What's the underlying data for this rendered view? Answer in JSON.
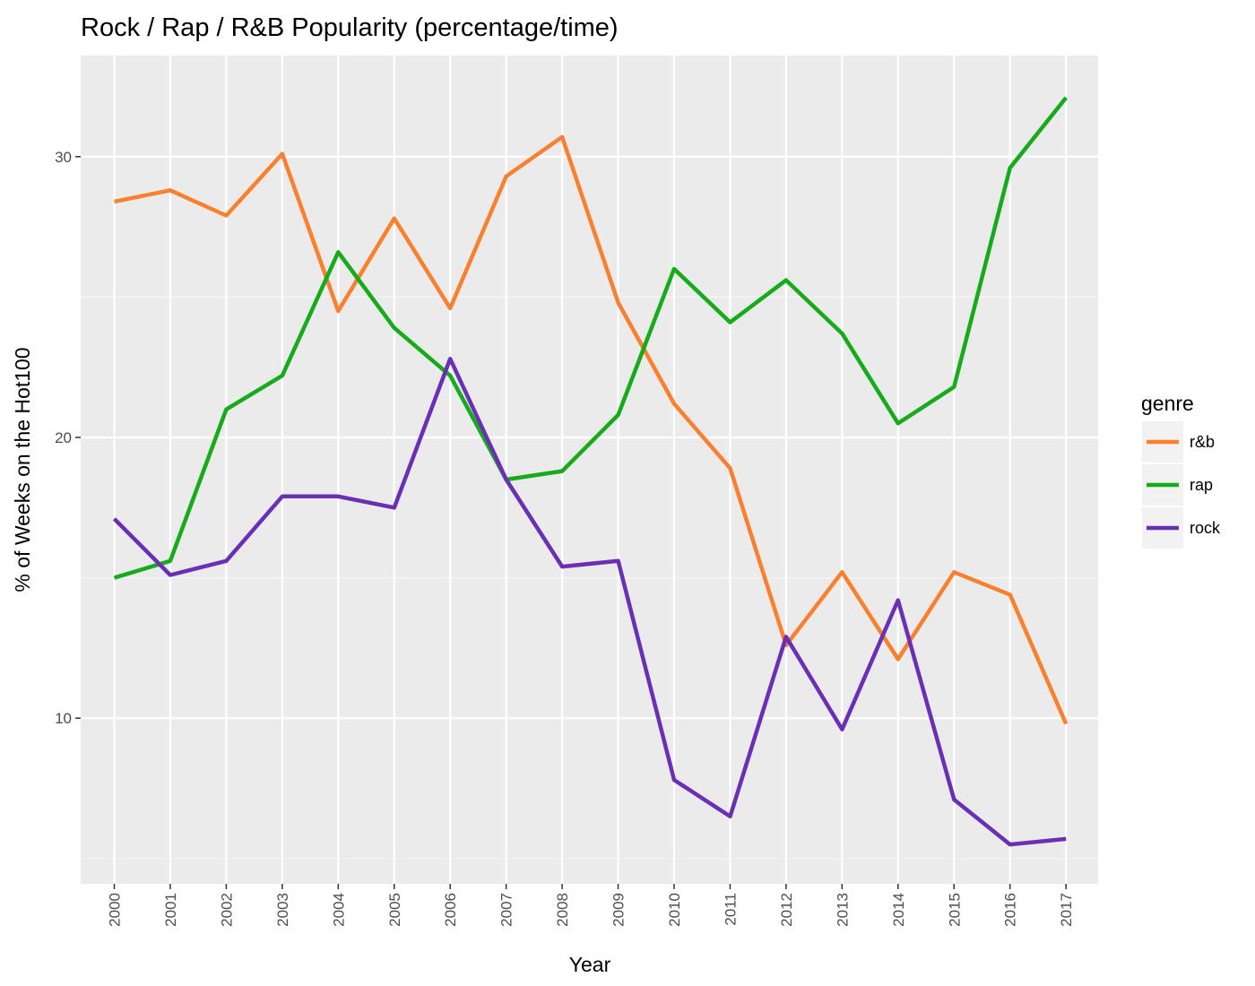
{
  "chart_data": {
    "type": "line",
    "title": "Rock / Rap / R&B Popularity   (percentage/time)",
    "xlabel": "Year",
    "ylabel": "%  of Weeks on the Hot100",
    "categories": [
      "2000",
      "2001",
      "2002",
      "2003",
      "2004",
      "2005",
      "2006",
      "2007",
      "2008",
      "2009",
      "2010",
      "2011",
      "2012",
      "2013",
      "2014",
      "2015",
      "2016",
      "2017"
    ],
    "yticks": [
      10,
      20,
      30
    ],
    "ylim": [
      4.1,
      33.6
    ],
    "grid": true,
    "legend": {
      "title": "genre",
      "position": "right"
    },
    "series": [
      {
        "name": "r&b",
        "color": "#f8802e",
        "values": [
          28.4,
          28.8,
          27.9,
          30.1,
          24.5,
          27.8,
          24.6,
          29.3,
          30.7,
          24.8,
          21.2,
          18.9,
          12.6,
          15.2,
          12.1,
          15.2,
          14.4,
          9.8
        ]
      },
      {
        "name": "rap",
        "color": "#16ab1a",
        "values": [
          15.0,
          15.6,
          21.0,
          22.2,
          26.6,
          23.9,
          22.2,
          18.5,
          18.8,
          20.8,
          26.0,
          24.1,
          25.6,
          23.7,
          20.5,
          21.8,
          29.6,
          32.1
        ]
      },
      {
        "name": "rock",
        "color": "#6a2fb5",
        "values": [
          17.1,
          15.1,
          15.6,
          17.9,
          17.9,
          17.5,
          22.8,
          18.5,
          15.4,
          15.6,
          7.8,
          6.5,
          12.9,
          9.6,
          14.2,
          7.1,
          5.5,
          5.7
        ]
      }
    ]
  }
}
